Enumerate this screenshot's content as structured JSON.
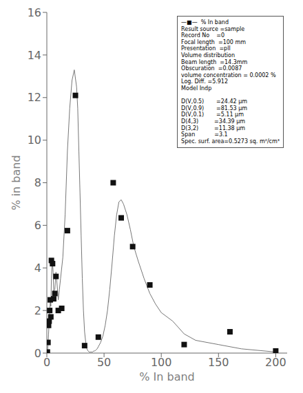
{
  "chart_data": {
    "type": "line",
    "xlabel": "% In band",
    "ylabel": "% in band",
    "xlim": [
      0,
      210
    ],
    "ylim": [
      0,
      16
    ],
    "xticks": [
      0,
      50,
      100,
      150,
      200
    ],
    "yticks": [
      0,
      2,
      4,
      6,
      8,
      10,
      12,
      14,
      16
    ],
    "grid": false,
    "annotation": "—■—  % In band\nResult source =sample\nRecord No    =0\nFocal length  =100 mm\nPresentation  =pll\nVolume distribution\nBeam length  =14.3mm\nObscuration  =0.0087\nvolume concentration = 0.0002 %\nLog. Diff. =5.912\nModel Indp\n\nD(V,0.5)       =24.42 μm\nD(V,0.9)       =81.53 μm\nD(V,0.1)       =5.11 μm\nD(4,3)         =34.39 μm\nD(3,2)         =11.38 μm\nSpan           =3.1\nSpec. surf. area=0.5273 sq. m²/cm³",
    "series": [
      {
        "type": "line",
        "color": "#777777",
        "x": [
          0.3,
          0.5,
          1,
          1.5,
          2,
          2.5,
          3,
          3.5,
          4,
          4.5,
          5,
          5.5,
          6,
          7,
          8,
          9,
          10,
          11,
          12,
          14,
          16,
          18,
          20,
          22,
          24,
          26,
          27,
          28,
          29,
          30,
          31,
          32,
          33,
          34,
          35,
          36,
          37,
          38,
          39,
          40,
          41,
          42,
          43,
          44,
          45,
          47,
          49,
          51,
          53,
          55,
          57,
          59,
          61,
          63,
          65,
          67,
          70,
          73,
          76,
          80,
          85,
          90,
          95,
          100,
          110,
          120,
          130,
          150,
          170,
          200
        ],
        "values": [
          0.0,
          0.05,
          0.35,
          0.9,
          1.4,
          1.9,
          2.4,
          2.2,
          3.5,
          4.1,
          4.3,
          3.8,
          2.9,
          3.0,
          3.8,
          3.2,
          2.5,
          3.0,
          3.5,
          4.5,
          6.5,
          9.5,
          11.5,
          12.8,
          13.3,
          12.5,
          11.5,
          9.5,
          7.5,
          5.5,
          3.5,
          2.0,
          1.0,
          0.5,
          0.2,
          0.1,
          0.05,
          0.05,
          0.05,
          0.05,
          0.1,
          0.1,
          0.15,
          0.2,
          0.3,
          0.5,
          0.8,
          1.3,
          2.0,
          3.0,
          4.2,
          5.5,
          6.5,
          7.1,
          7.2,
          7.0,
          6.5,
          5.8,
          5.0,
          4.3,
          3.5,
          2.8,
          2.3,
          1.9,
          1.5,
          0.9,
          0.6,
          0.4,
          0.2,
          0.05
        ]
      },
      {
        "type": "scatter",
        "color": "#111111",
        "marker": "square",
        "x": [
          0.5,
          1,
          1.5,
          2,
          2.5,
          3,
          3.5,
          4,
          5,
          6,
          7,
          8,
          10,
          13,
          18,
          25,
          33,
          45,
          58,
          65,
          75,
          90,
          120,
          160,
          200
        ],
        "values": [
          0.05,
          0.5,
          1.3,
          1.5,
          2.0,
          2.5,
          1.7,
          4.35,
          4.2,
          2.55,
          2.8,
          3.6,
          2.0,
          2.1,
          5.75,
          12.1,
          0.35,
          0.75,
          8.0,
          6.35,
          5.0,
          3.2,
          0.4,
          1.0,
          0.1
        ]
      }
    ]
  }
}
